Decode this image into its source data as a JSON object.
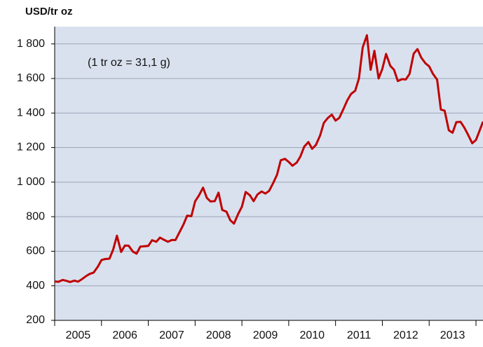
{
  "chart_data": {
    "type": "line",
    "y_axis_label": "USD/tr oz",
    "annotation": "(1 tr oz = 31,1 g)",
    "color": "#c00000",
    "plot_background": "#d9e1ee",
    "grid": true,
    "xlim": [
      2005,
      2014.15
    ],
    "xticks": [
      2005,
      2006,
      2007,
      2008,
      2009,
      2010,
      2011,
      2012,
      2013,
      2014
    ],
    "year_labels": [
      {
        "value": 2005.5,
        "label": "2005"
      },
      {
        "value": 2006.5,
        "label": "2006"
      },
      {
        "value": 2007.5,
        "label": "2007"
      },
      {
        "value": 2008.5,
        "label": "2008"
      },
      {
        "value": 2009.5,
        "label": "2009"
      },
      {
        "value": 2010.5,
        "label": "2010"
      },
      {
        "value": 2011.5,
        "label": "2011"
      },
      {
        "value": 2012.5,
        "label": "2012"
      },
      {
        "value": 2013.5,
        "label": "2013"
      }
    ],
    "ylim": [
      200,
      1900
    ],
    "yticks": [
      200,
      400,
      600,
      800,
      {
        "value": 1000,
        "label": "1 000"
      },
      {
        "value": 1200,
        "label": "1 200"
      },
      {
        "value": 1400,
        "label": "1 400"
      },
      {
        "value": 1600,
        "label": "1 600"
      },
      {
        "value": 1800,
        "label": "1 800"
      }
    ],
    "x": [
      2005.0,
      2005.08,
      2005.17,
      2005.25,
      2005.33,
      2005.42,
      2005.5,
      2005.58,
      2005.67,
      2005.75,
      2005.83,
      2005.92,
      2006.0,
      2006.08,
      2006.17,
      2006.25,
      2006.33,
      2006.42,
      2006.5,
      2006.58,
      2006.67,
      2006.75,
      2006.83,
      2006.92,
      2007.0,
      2007.08,
      2007.17,
      2007.25,
      2007.33,
      2007.42,
      2007.5,
      2007.58,
      2007.67,
      2007.75,
      2007.83,
      2007.92,
      2008.0,
      2008.08,
      2008.17,
      2008.25,
      2008.33,
      2008.42,
      2008.5,
      2008.58,
      2008.67,
      2008.75,
      2008.83,
      2008.92,
      2009.0,
      2009.08,
      2009.17,
      2009.25,
      2009.33,
      2009.42,
      2009.5,
      2009.58,
      2009.67,
      2009.75,
      2009.83,
      2009.92,
      2010.0,
      2010.08,
      2010.17,
      2010.25,
      2010.33,
      2010.42,
      2010.5,
      2010.58,
      2010.67,
      2010.75,
      2010.83,
      2010.92,
      2011.0,
      2011.08,
      2011.17,
      2011.25,
      2011.33,
      2011.42,
      2011.5,
      2011.58,
      2011.67,
      2011.75,
      2011.83,
      2011.92,
      2012.0,
      2012.08,
      2012.17,
      2012.25,
      2012.33,
      2012.42,
      2012.5,
      2012.58,
      2012.67,
      2012.75,
      2012.83,
      2012.92,
      2013.0,
      2013.08,
      2013.17,
      2013.25,
      2013.33,
      2013.42,
      2013.5,
      2013.58,
      2013.67,
      2013.75,
      2013.83,
      2013.92,
      2014.0,
      2014.08,
      2014.15
    ],
    "values": [
      425,
      423,
      434,
      429,
      422,
      430,
      424,
      438,
      456,
      469,
      476,
      510,
      549,
      555,
      557,
      610,
      690,
      596,
      633,
      632,
      598,
      586,
      627,
      629,
      631,
      664,
      655,
      679,
      667,
      655,
      665,
      665,
      712,
      754,
      806,
      803,
      889,
      922,
      968,
      909,
      888,
      890,
      939,
      839,
      829,
      780,
      760,
      816,
      858,
      943,
      924,
      890,
      928,
      946,
      934,
      949,
      996,
      1043,
      1127,
      1135,
      1117,
      1095,
      1113,
      1149,
      1205,
      1232,
      1193,
      1215,
      1270,
      1343,
      1370,
      1391,
      1356,
      1372,
      1424,
      1473,
      1510,
      1529,
      1600,
      1780,
      1850,
      1650,
      1760,
      1600,
      1656,
      1742,
      1673,
      1650,
      1585,
      1596,
      1594,
      1626,
      1744,
      1770,
      1721,
      1688,
      1670,
      1627,
      1593,
      1420,
      1414,
      1300,
      1286,
      1347,
      1349,
      1316,
      1275,
      1225,
      1244,
      1300,
      1350
    ]
  }
}
